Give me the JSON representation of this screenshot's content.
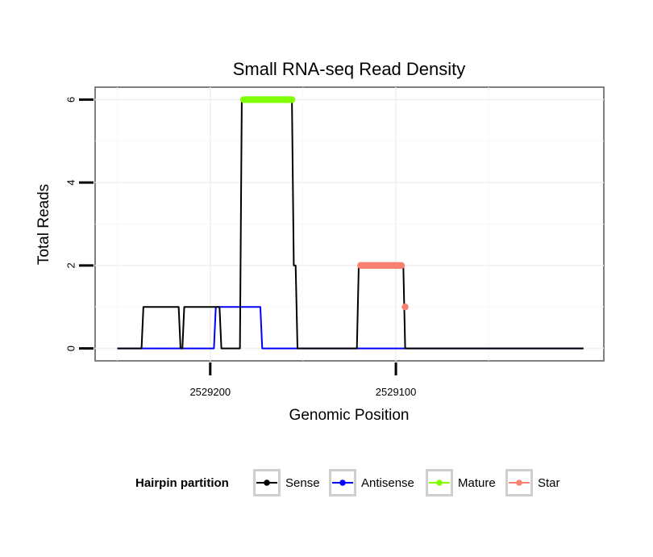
{
  "chart_data": {
    "type": "line",
    "title": "Small RNA-seq Read Density",
    "xlabel": "Genomic Position",
    "ylabel": "Total Reads",
    "xlim": [
      2529262,
      2528988
    ],
    "ylim": [
      -0.3,
      6.3
    ],
    "x_reversed": true,
    "x_ticks": [
      2529200,
      2529100
    ],
    "x_tick_labels": [
      "2529200",
      "2529100"
    ],
    "y_ticks": [
      0,
      2,
      4,
      6
    ],
    "y_tick_labels": [
      "0",
      "2",
      "4",
      "6"
    ],
    "grid": true,
    "legend": {
      "title": "Hairpin partition",
      "position": "bottom",
      "entries": [
        "Sense",
        "Antisense",
        "Mature",
        "Star"
      ]
    },
    "series": [
      {
        "name": "Sense",
        "color": "#000000",
        "style": "line",
        "x": [
          2529250,
          2529237,
          2529236,
          2529217,
          2529216,
          2529215,
          2529214,
          2529195,
          2529194,
          2529184,
          2529183,
          2529182,
          2529156,
          2529155,
          2529154,
          2529153,
          2529121,
          2529120,
          2529096,
          2529095,
          2528999
        ],
        "y": [
          0,
          0,
          1,
          1,
          0,
          0,
          1,
          1,
          0,
          0,
          6,
          6,
          6,
          2,
          2,
          0,
          0,
          2,
          2,
          0,
          0
        ]
      },
      {
        "name": "Antisense",
        "color": "#0000ff",
        "style": "line",
        "x": [
          2529250,
          2529198,
          2529197,
          2529173,
          2529172,
          2529121,
          2529120,
          2529096,
          2529095,
          2528999
        ],
        "y": [
          0,
          0,
          1,
          1,
          0,
          0,
          0,
          0,
          0,
          0
        ]
      },
      {
        "name": "Mature",
        "color": "#7fff00",
        "style": "points",
        "x_start": 2529182,
        "x_end": 2529156,
        "y": 6
      },
      {
        "name": "Star",
        "color": "#fa8072",
        "style": "points",
        "x_start": 2529119,
        "x_end": 2529097,
        "y": 2,
        "extra_points": [
          {
            "x": 2529095,
            "y": 1
          }
        ]
      }
    ]
  }
}
